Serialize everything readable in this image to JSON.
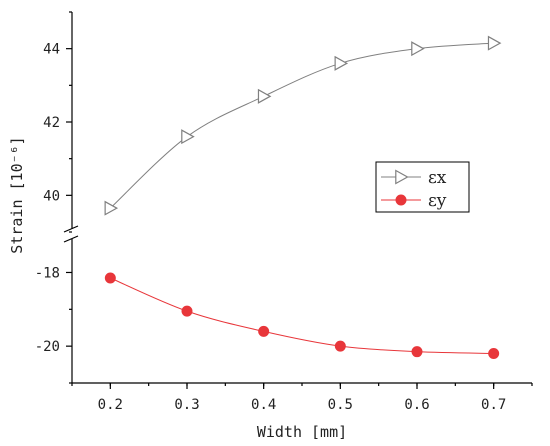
{
  "chart_data": {
    "type": "line",
    "xlabel": "Width [mm]",
    "ylabel": "Strain [10⁻⁶]",
    "x": [
      0.2,
      0.3,
      0.4,
      0.5,
      0.6,
      0.7
    ],
    "x_ticks": [
      "0.2",
      "0.3",
      "0.4",
      "0.5",
      "0.6",
      "0.7"
    ],
    "xlim": [
      0.15,
      0.75
    ],
    "broken_y_axis": true,
    "y_upper_range": [
      39.0,
      45.0
    ],
    "y_upper_ticks": [
      "40",
      "42",
      "44"
    ],
    "y_lower_range": [
      -21.0,
      -17.2
    ],
    "y_lower_ticks": [
      "-18",
      "-20"
    ],
    "grid": false,
    "legend_placement": "right-middle",
    "series": [
      {
        "name": "εx",
        "values": [
          39.65,
          41.6,
          42.7,
          43.6,
          44.0,
          44.15
        ],
        "color": "#808080",
        "marker": "open right-pointing triangle"
      },
      {
        "name": "εy",
        "values": [
          -18.15,
          -19.05,
          -19.6,
          -20.0,
          -20.15,
          -20.2
        ],
        "color": "#e8363a",
        "marker": "filled circle"
      }
    ]
  }
}
